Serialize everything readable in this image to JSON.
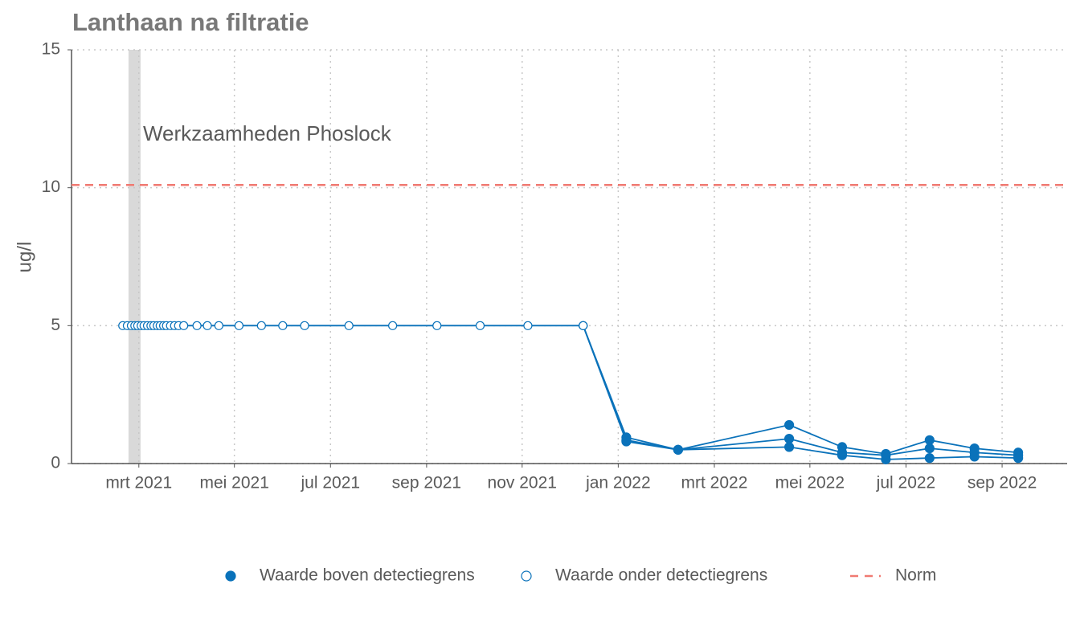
{
  "chart_data": {
    "type": "line",
    "title": "Lanthaan na filtratie",
    "y_label": "ug/l",
    "xlim": [
      2021.05,
      2022.78
    ],
    "ylim": [
      0,
      15
    ],
    "yticks": [
      0,
      5,
      10,
      15
    ],
    "xticks": [
      {
        "value": 2021.167,
        "label": "mrt 2021"
      },
      {
        "value": 2021.333,
        "label": "mei 2021"
      },
      {
        "value": 2021.5,
        "label": "jul 2021"
      },
      {
        "value": 2021.667,
        "label": "sep 2021"
      },
      {
        "value": 2021.833,
        "label": "nov 2021"
      },
      {
        "value": 2022.0,
        "label": "jan 2022"
      },
      {
        "value": 2022.167,
        "label": "mrt 2022"
      },
      {
        "value": 2022.333,
        "label": "mei 2022"
      },
      {
        "value": 2022.5,
        "label": "jul 2022"
      },
      {
        "value": 2022.667,
        "label": "sep 2022"
      }
    ],
    "grid": true,
    "color": "#0a72ba",
    "shade": {
      "start": 2021.149,
      "end": 2021.17,
      "label": "Werkzaamheden Phoslock",
      "color": "#d9d9d9"
    },
    "norm": {
      "value": 10.1,
      "label": "Norm",
      "color": "#f07a72"
    },
    "legend": [
      {
        "name": "Waarde boven detectiegrens",
        "filled": true
      },
      {
        "name": "Waarde onder detectiegrens",
        "filled": false
      }
    ],
    "series": [
      {
        "x": [
          2021.139,
          2021.147,
          2021.154,
          2021.16,
          2021.165,
          2021.171,
          2021.176,
          2021.182,
          2021.188,
          2021.193,
          2021.199,
          2021.204,
          2021.21,
          2021.215,
          2021.222,
          2021.229,
          2021.236,
          2021.245,
          2021.268,
          2021.286,
          2021.306,
          2021.341,
          2021.38,
          2021.417,
          2021.455,
          2021.532,
          2021.608,
          2021.685,
          2021.76,
          2021.843,
          2021.939,
          2022.014,
          2022.104,
          2022.297,
          2022.389,
          2022.465,
          2022.541,
          2022.619,
          2022.695
        ],
        "values": [
          5,
          5,
          5,
          5,
          5,
          5,
          5,
          5,
          5,
          5,
          5,
          5,
          5,
          5,
          5,
          5,
          5,
          5,
          5,
          5,
          5,
          5,
          5,
          5,
          5,
          5,
          5,
          5,
          5,
          5,
          5,
          0.95,
          0.5,
          1.4,
          0.6,
          0.35,
          0.85,
          0.55,
          0.4
        ],
        "above_detection": [
          false,
          false,
          false,
          false,
          false,
          false,
          false,
          false,
          false,
          false,
          false,
          false,
          false,
          false,
          false,
          false,
          false,
          false,
          false,
          false,
          false,
          false,
          false,
          false,
          false,
          false,
          false,
          false,
          false,
          false,
          false,
          true,
          true,
          true,
          true,
          true,
          true,
          true,
          true
        ]
      },
      {
        "x": [
          2021.939,
          2022.014,
          2022.104,
          2022.297,
          2022.389,
          2022.465,
          2022.541,
          2022.619,
          2022.695
        ],
        "values": [
          5,
          0.85,
          0.5,
          0.9,
          0.4,
          0.3,
          0.55,
          0.4,
          0.3
        ],
        "above_detection": [
          false,
          true,
          true,
          true,
          true,
          true,
          true,
          true,
          true
        ]
      },
      {
        "x": [
          2021.939,
          2022.014,
          2022.104,
          2022.297,
          2022.389,
          2022.465,
          2022.541,
          2022.619,
          2022.695
        ],
        "values": [
          5,
          0.8,
          0.5,
          0.6,
          0.3,
          0.15,
          0.2,
          0.25,
          0.2
        ],
        "above_detection": [
          false,
          true,
          true,
          true,
          true,
          true,
          true,
          true,
          true
        ]
      }
    ]
  }
}
